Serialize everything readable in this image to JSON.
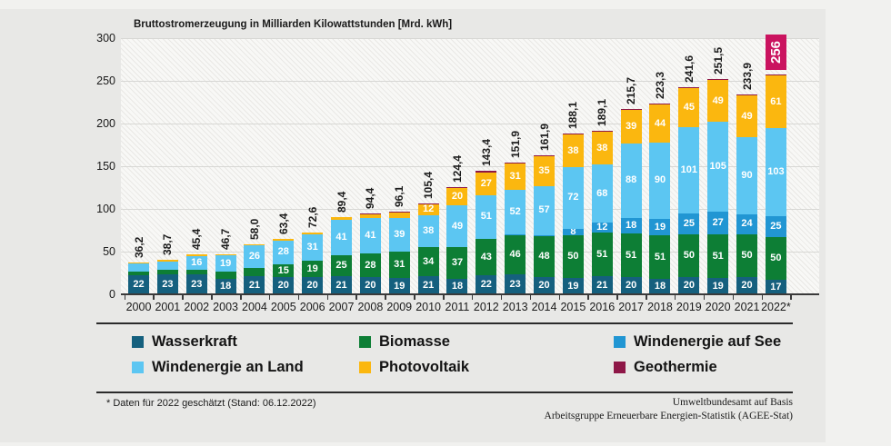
{
  "chart_title": "Bruttostromerzeugung in Milliarden Kilowattstunden [Mrd. kWh]",
  "chart_data": {
    "type": "bar",
    "stacked": true,
    "title": "Bruttostromerzeugung in Milliarden Kilowattstunden [Mrd. kWh]",
    "grid": true,
    "legend_position": "bottom",
    "y_axis": {
      "min": 0,
      "max": 300,
      "step": 50,
      "ticks": [
        0,
        50,
        100,
        150,
        200,
        250,
        300
      ]
    },
    "categories": [
      "2000",
      "2001",
      "2002",
      "2003",
      "2004",
      "2005",
      "2006",
      "2007",
      "2008",
      "2009",
      "2010",
      "2011",
      "2012",
      "2013",
      "2014",
      "2015",
      "2016",
      "2017",
      "2018",
      "2019",
      "2020",
      "2021",
      "2022*"
    ],
    "totals": [
      "36,2",
      "38,7",
      "45,4",
      "46,7",
      "58,0",
      "63,4",
      "72,6",
      "89,4",
      "94,4",
      "96,1",
      "105,4",
      "124,4",
      "143,4",
      "151,9",
      "161,9",
      "188,1",
      "189,1",
      "215,7",
      "223,3",
      "241,6",
      "251,5",
      "233,9",
      "256"
    ],
    "highlight_total_index": 22,
    "series": [
      {
        "name": "Wasserkraft",
        "color": "#15607e",
        "values": [
          22,
          23,
          23,
          18,
          21,
          20,
          20,
          21,
          20,
          19,
          21,
          18,
          22,
          23,
          20,
          19,
          21,
          20,
          18,
          20,
          19,
          20,
          17
        ],
        "labels": [
          "22",
          "23",
          "23",
          "18",
          "21",
          "20",
          "20",
          "21",
          "20",
          "19",
          "21",
          "18",
          "22",
          "23",
          "20",
          "19",
          "21",
          "20",
          "18",
          "20",
          "19",
          "20",
          "17"
        ]
      },
      {
        "name": "Biomasse",
        "color": "#0d7e35",
        "values": [
          4.5,
          5.3,
          6,
          8.4,
          10.2,
          15,
          19,
          25,
          28,
          31,
          34,
          37,
          43,
          46,
          48,
          50,
          51,
          51,
          51,
          50,
          51,
          50,
          50
        ],
        "labels": [
          "",
          "",
          "",
          "",
          "",
          "15",
          "19",
          "25",
          "28",
          "31",
          "34",
          "37",
          "43",
          "46",
          "48",
          "50",
          "51",
          "51",
          "51",
          "50",
          "51",
          "50",
          "50"
        ]
      },
      {
        "name": "Windenergie auf See",
        "color": "#2196d3",
        "values": [
          0,
          0,
          0,
          0,
          0,
          0,
          0,
          0,
          0,
          0,
          0,
          0,
          0,
          0.5,
          1.4,
          8,
          12,
          18,
          19,
          25,
          27,
          24,
          25
        ],
        "labels": [
          "",
          "",
          "",
          "",
          "",
          "",
          "",
          "",
          "",
          "",
          "",
          "",
          "",
          "",
          "",
          "8",
          "12",
          "18",
          "19",
          "25",
          "27",
          "24",
          "25"
        ]
      },
      {
        "name": "Windenergie an Land",
        "color": "#5cc6f2",
        "values": [
          9.5,
          10.5,
          16,
          19,
          26,
          28,
          31,
          41,
          41,
          39,
          38,
          49,
          51,
          52,
          57,
          72,
          68,
          88,
          90,
          101,
          105,
          90,
          103
        ],
        "labels": [
          "",
          "",
          "16",
          "19",
          "26",
          "28",
          "31",
          "41",
          "41",
          "39",
          "38",
          "49",
          "51",
          "52",
          "57",
          "72",
          "68",
          "88",
          "90",
          "101",
          "105",
          "90",
          "103"
        ]
      },
      {
        "name": "Photovoltaik",
        "color": "#fbb70f",
        "values": [
          0.1,
          0.1,
          0.2,
          0.3,
          0.6,
          1.3,
          2.2,
          3.1,
          4.4,
          6.6,
          12,
          20,
          27,
          31,
          35,
          38,
          38,
          39,
          44,
          45,
          49,
          49,
          61
        ],
        "labels": [
          "",
          "",
          "",
          "",
          "",
          "",
          "",
          "",
          "",
          "",
          "12",
          "20",
          "27",
          "31",
          "35",
          "38",
          "38",
          "39",
          "44",
          "45",
          "49",
          "49",
          "61"
        ]
      },
      {
        "name": "Geothermie",
        "color": "#8e1747",
        "values": [
          0,
          0,
          0,
          0,
          0,
          0,
          0,
          0,
          0.2,
          0.2,
          0.2,
          0.2,
          0.2,
          0.2,
          0.2,
          0.2,
          0.2,
          0.2,
          0.2,
          0.2,
          0.2,
          0.2,
          0.2
        ],
        "labels": [
          "",
          "",
          "",
          "",
          "",
          "",
          "",
          "",
          "",
          "",
          "",
          "",
          "",
          "",
          "",
          "",
          "",
          "",
          "",
          "",
          "",
          "",
          ""
        ]
      }
    ]
  },
  "legend": {
    "items": [
      {
        "label": "Wasserkraft",
        "color": "#15607e"
      },
      {
        "label": "Biomasse",
        "color": "#0d7e35"
      },
      {
        "label": "Windenergie auf See",
        "color": "#2196d3"
      },
      {
        "label": "Windenergie an Land",
        "color": "#5cc6f2"
      },
      {
        "label": "Photovoltaik",
        "color": "#fbb70f"
      },
      {
        "label": "Geothermie",
        "color": "#8e1747"
      }
    ]
  },
  "footer": {
    "note": "* Daten für 2022 geschätzt (Stand: 06.12.2022)",
    "source_line1": "Umweltbundesamt auf Basis",
    "source_line2": "Arbeitsgruppe Erneuerbare Energien-Statistik (AGEE-Stat)"
  },
  "colors": {
    "panel_background": "#e8e8e6",
    "page_background": "#f1f1ef",
    "highlight_box": "#ca135f",
    "axis": "#3a3a3a",
    "gridline": "#d7d7d4"
  }
}
